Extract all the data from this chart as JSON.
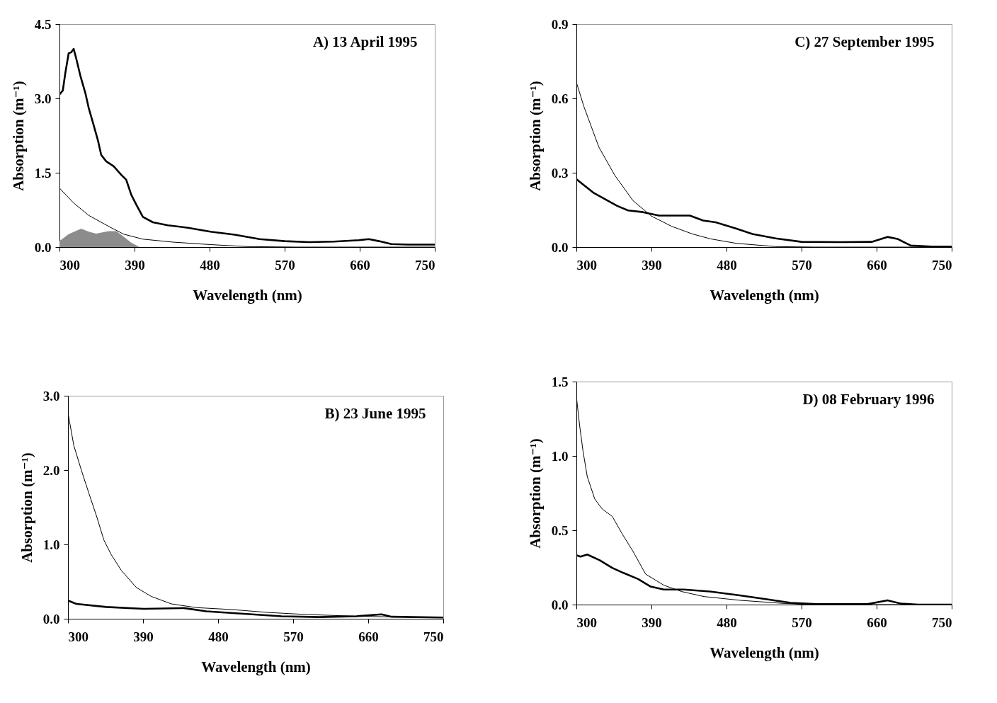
{
  "chart_data": [
    {
      "type": "line",
      "title": "A) 13 April 1995",
      "xlabel": "Wavelength (nm)",
      "ylabel": "Absorption (m⁻¹)",
      "xlim": [
        300,
        750
      ],
      "xticks": [
        300,
        390,
        480,
        570,
        660,
        750
      ],
      "ylim": [
        0,
        4.5
      ],
      "yticks": [
        {
          "value": 0,
          "label": "0.0"
        },
        {
          "value": 1.5,
          "label": "1.5"
        },
        {
          "value": 3,
          "label": "3.0"
        },
        {
          "value": 4.5,
          "label": "4.5"
        }
      ],
      "grid": false,
      "series": [
        {
          "type": "area",
          "color": "#8c8c8c",
          "x": [
            300,
            311,
            326,
            335,
            344,
            359,
            368,
            377,
            386,
            396,
            400
          ],
          "values": [
            0.12,
            0.26,
            0.37,
            0.31,
            0.27,
            0.32,
            0.32,
            0.21,
            0.09,
            0,
            0
          ]
        },
        {
          "color": "#000000",
          "x": [
            300,
            304,
            307,
            311,
            314,
            317,
            320,
            325,
            331,
            335,
            341,
            346,
            350,
            356,
            365,
            374,
            380,
            386,
            392,
            400,
            412,
            430,
            454,
            481,
            510,
            540,
            570,
            599,
            629,
            659,
            671,
            683,
            698,
            718,
            750
          ],
          "values": [
            3.08,
            3.16,
            3.51,
            3.91,
            3.93,
            4.0,
            3.81,
            3.46,
            3.11,
            2.81,
            2.46,
            2.16,
            1.86,
            1.73,
            1.63,
            1.46,
            1.36,
            1.06,
            0.86,
            0.61,
            0.5,
            0.44,
            0.39,
            0.31,
            0.25,
            0.16,
            0.12,
            0.1,
            0.11,
            0.14,
            0.16,
            0.12,
            0.06,
            0.05,
            0.05
          ]
        },
        {
          "color": "#000000",
          "x": [
            300,
            317,
            335,
            362,
            377,
            400,
            436,
            481,
            525,
            585,
            750
          ],
          "values": [
            1.19,
            0.89,
            0.64,
            0.39,
            0.26,
            0.16,
            0.1,
            0.05,
            0.01,
            0,
            0
          ]
        }
      ]
    },
    {
      "type": "line",
      "title": "C) 27 September 1995",
      "xlabel": "Wavelength (nm)",
      "ylabel": "Absorption (m⁻¹)",
      "xlim": [
        300,
        750
      ],
      "xticks": [
        300,
        390,
        480,
        570,
        660,
        750
      ],
      "ylim": [
        0,
        0.9
      ],
      "yticks": [
        {
          "value": 0,
          "label": "0.0"
        },
        0.3,
        0.6,
        0.9
      ],
      "grid": false,
      "series": [
        {
          "color": "#000000",
          "x": [
            300,
            321,
            349,
            362,
            380,
            399,
            414,
            436,
            452,
            467,
            492,
            511,
            539,
            570,
            617,
            654,
            673,
            685,
            701,
            726,
            750
          ],
          "values": [
            0.274,
            0.218,
            0.166,
            0.148,
            0.141,
            0.127,
            0.127,
            0.127,
            0.107,
            0.1,
            0.074,
            0.053,
            0.035,
            0.021,
            0.02,
            0.021,
            0.041,
            0.033,
            0.006,
            0.002,
            0.002
          ]
        },
        {
          "color": "#000000",
          "x": [
            300,
            309,
            327,
            346,
            368,
            390,
            414,
            439,
            461,
            492,
            539,
            586,
            750
          ],
          "values": [
            0.665,
            0.567,
            0.403,
            0.29,
            0.187,
            0.125,
            0.084,
            0.053,
            0.033,
            0.015,
            0.002,
            0,
            0
          ]
        }
      ]
    },
    {
      "type": "line",
      "title": "B) 23 June 1995",
      "xlabel": "Wavelength (nm)",
      "ylabel": "Absorption (m⁻¹)",
      "xlim": [
        300,
        750
      ],
      "xticks": [
        300,
        390,
        480,
        570,
        660,
        750
      ],
      "ylim": [
        0,
        3
      ],
      "yticks": [
        {
          "value": 0,
          "label": "0.0"
        },
        {
          "value": 1,
          "label": "1.0"
        },
        {
          "value": 2,
          "label": "2.0"
        },
        {
          "value": 3,
          "label": "3.0"
        }
      ],
      "grid": false,
      "series": [
        {
          "color": "#000000",
          "x": [
            300,
            310,
            346,
            391,
            439,
            466,
            511,
            556,
            601,
            646,
            676,
            688,
            750
          ],
          "values": [
            0.245,
            0.2,
            0.158,
            0.134,
            0.144,
            0.1,
            0.067,
            0.034,
            0.023,
            0.034,
            0.06,
            0.027,
            0.017
          ]
        },
        {
          "color": "#000000",
          "x": [
            300,
            307,
            316,
            325,
            334,
            343,
            352,
            364,
            382,
            400,
            424,
            454,
            496,
            541,
            586,
            646,
            706,
            750
          ],
          "values": [
            2.77,
            2.33,
            2.0,
            1.69,
            1.39,
            1.06,
            0.86,
            0.65,
            0.42,
            0.3,
            0.2,
            0.15,
            0.124,
            0.084,
            0.057,
            0.034,
            0.023,
            0.017
          ]
        }
      ]
    },
    {
      "type": "line",
      "title": "D) 08 February 1996",
      "xlabel": "Wavelength (nm)",
      "ylabel": "Absorption (m⁻¹)",
      "xlim": [
        300,
        750
      ],
      "xticks": [
        300,
        390,
        480,
        570,
        660,
        750
      ],
      "ylim": [
        0,
        1.5
      ],
      "yticks": [
        {
          "value": 0,
          "label": "0.0"
        },
        {
          "value": 0.5,
          "label": "0.5"
        },
        {
          "value": 1,
          "label": "1.0"
        },
        {
          "value": 1.5,
          "label": "1.5"
        }
      ],
      "grid": false,
      "series": [
        {
          "color": "#000000",
          "x": [
            300,
            305,
            313,
            328,
            343,
            356,
            374,
            389,
            405,
            429,
            460,
            496,
            527,
            557,
            588,
            649,
            673,
            689,
            710,
            750
          ],
          "values": [
            0.332,
            0.323,
            0.337,
            0.298,
            0.247,
            0.214,
            0.172,
            0.121,
            0.101,
            0.101,
            0.088,
            0.062,
            0.037,
            0.012,
            0.003,
            0.003,
            0.029,
            0.007,
            0,
            0
          ]
        },
        {
          "color": "#000000",
          "x": [
            300,
            304,
            308,
            313,
            322,
            331,
            343,
            355,
            368,
            383,
            405,
            426,
            453,
            496,
            551,
            588,
            750
          ],
          "values": [
            1.4,
            1.2,
            1.03,
            0.862,
            0.71,
            0.643,
            0.593,
            0.475,
            0.357,
            0.205,
            0.13,
            0.088,
            0.054,
            0.029,
            0.007,
            0,
            0
          ]
        }
      ]
    }
  ]
}
